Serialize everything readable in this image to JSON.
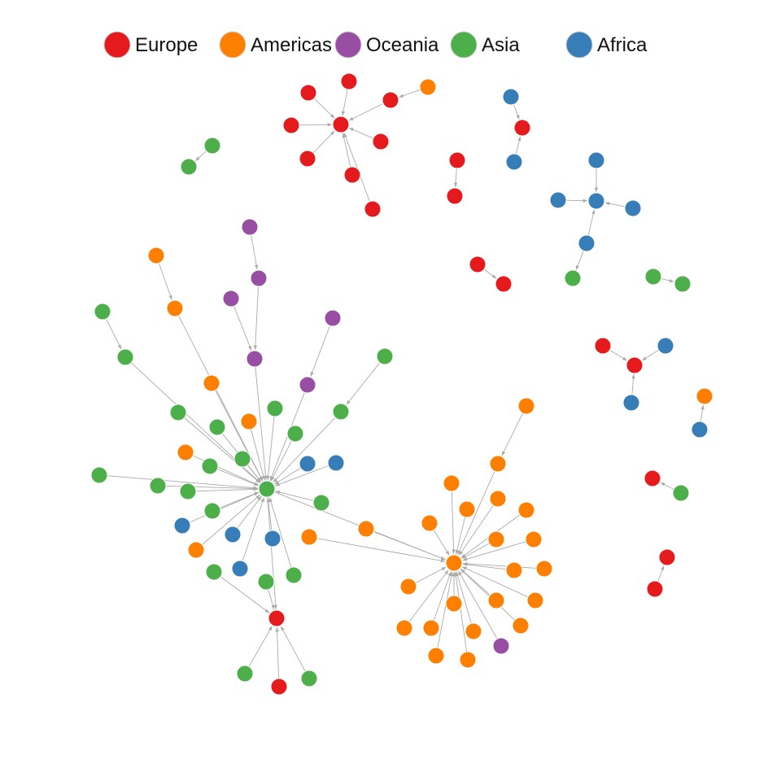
{
  "colors": {
    "Europe": "#e41a1c",
    "Americas": "#ff7f00",
    "Oceania": "#984ea3",
    "Asia": "#4daf4a",
    "Africa": "#377eb8",
    "edge": "#aaaaaa"
  },
  "legend": [
    {
      "label": "Europe",
      "group": "Europe"
    },
    {
      "label": "Americas",
      "group": "Americas"
    },
    {
      "label": "Oceania",
      "group": "Oceania"
    },
    {
      "label": "Asia",
      "group": "Asia"
    },
    {
      "label": "Africa",
      "group": "Africa"
    }
  ],
  "nodes": [
    {
      "id": "E1",
      "g": "Europe"
    },
    {
      "id": "E2",
      "g": "Europe"
    },
    {
      "id": "E3",
      "g": "Europe"
    },
    {
      "id": "E4",
      "g": "Europe"
    },
    {
      "id": "E5",
      "g": "Europe"
    },
    {
      "id": "E6",
      "g": "Europe"
    },
    {
      "id": "E7",
      "g": "Europe"
    },
    {
      "id": "E8",
      "g": "Europe"
    },
    {
      "id": "E9",
      "g": "Europe"
    },
    {
      "id": "A1",
      "g": "Americas"
    },
    {
      "id": "F1",
      "g": "Africa"
    },
    {
      "id": "E10",
      "g": "Europe"
    },
    {
      "id": "F2",
      "g": "Africa"
    },
    {
      "id": "S1",
      "g": "Asia"
    },
    {
      "id": "S2",
      "g": "Asia"
    },
    {
      "id": "E11",
      "g": "Europe"
    },
    {
      "id": "E12",
      "g": "Europe"
    },
    {
      "id": "F3",
      "g": "Africa"
    },
    {
      "id": "F4",
      "g": "Africa"
    },
    {
      "id": "F5",
      "g": "Africa"
    },
    {
      "id": "F6",
      "g": "Africa"
    },
    {
      "id": "F7",
      "g": "Africa"
    },
    {
      "id": "S3",
      "g": "Asia"
    },
    {
      "id": "E13",
      "g": "Europe"
    },
    {
      "id": "E14",
      "g": "Europe"
    },
    {
      "id": "S4",
      "g": "Asia"
    },
    {
      "id": "S5",
      "g": "Asia"
    },
    {
      "id": "E15",
      "g": "Europe"
    },
    {
      "id": "E16",
      "g": "Europe"
    },
    {
      "id": "F8",
      "g": "Africa"
    },
    {
      "id": "F9",
      "g": "Africa"
    },
    {
      "id": "A2",
      "g": "Americas"
    },
    {
      "id": "F10",
      "g": "Africa"
    },
    {
      "id": "E17",
      "g": "Europe"
    },
    {
      "id": "S6",
      "g": "Asia"
    },
    {
      "id": "E18",
      "g": "Europe"
    },
    {
      "id": "E19",
      "g": "Europe"
    },
    {
      "id": "H1",
      "g": "Asia"
    },
    {
      "id": "O1",
      "g": "Oceania"
    },
    {
      "id": "O2",
      "g": "Oceania"
    },
    {
      "id": "O3",
      "g": "Oceania"
    },
    {
      "id": "O4",
      "g": "Oceania"
    },
    {
      "id": "O5",
      "g": "Oceania"
    },
    {
      "id": "O6",
      "g": "Oceania"
    },
    {
      "id": "A3",
      "g": "Americas"
    },
    {
      "id": "A4",
      "g": "Americas"
    },
    {
      "id": "A5",
      "g": "Americas"
    },
    {
      "id": "A6",
      "g": "Americas"
    },
    {
      "id": "A7",
      "g": "Americas"
    },
    {
      "id": "A8",
      "g": "Americas"
    },
    {
      "id": "A9",
      "g": "Americas"
    },
    {
      "id": "S7",
      "g": "Asia"
    },
    {
      "id": "S8",
      "g": "Asia"
    },
    {
      "id": "S9",
      "g": "Asia"
    },
    {
      "id": "S10",
      "g": "Asia"
    },
    {
      "id": "S11",
      "g": "Asia"
    },
    {
      "id": "S12",
      "g": "Asia"
    },
    {
      "id": "S13",
      "g": "Asia"
    },
    {
      "id": "S14",
      "g": "Asia"
    },
    {
      "id": "S15",
      "g": "Asia"
    },
    {
      "id": "S16",
      "g": "Asia"
    },
    {
      "id": "S17",
      "g": "Asia"
    },
    {
      "id": "S18",
      "g": "Asia"
    },
    {
      "id": "S19",
      "g": "Asia"
    },
    {
      "id": "S20",
      "g": "Asia"
    },
    {
      "id": "S21",
      "g": "Asia"
    },
    {
      "id": "S22",
      "g": "Asia"
    },
    {
      "id": "S23",
      "g": "Asia"
    },
    {
      "id": "S24",
      "g": "Asia"
    },
    {
      "id": "F11",
      "g": "Africa"
    },
    {
      "id": "F12",
      "g": "Africa"
    },
    {
      "id": "F13",
      "g": "Africa"
    },
    {
      "id": "F14",
      "g": "Africa"
    },
    {
      "id": "F15",
      "g": "Africa"
    },
    {
      "id": "F16",
      "g": "Africa"
    },
    {
      "id": "E20",
      "g": "Europe"
    },
    {
      "id": "S25",
      "g": "Asia"
    },
    {
      "id": "E21",
      "g": "Europe"
    },
    {
      "id": "S26",
      "g": "Asia"
    },
    {
      "id": "H2",
      "g": "Americas"
    },
    {
      "id": "B1",
      "g": "Americas"
    },
    {
      "id": "B2",
      "g": "Americas"
    },
    {
      "id": "B3",
      "g": "Americas"
    },
    {
      "id": "B4",
      "g": "Americas"
    },
    {
      "id": "B5",
      "g": "Americas"
    },
    {
      "id": "B6",
      "g": "Americas"
    },
    {
      "id": "B7",
      "g": "Americas"
    },
    {
      "id": "B8",
      "g": "Americas"
    },
    {
      "id": "B9",
      "g": "Americas"
    },
    {
      "id": "B10",
      "g": "Americas"
    },
    {
      "id": "B11",
      "g": "Americas"
    },
    {
      "id": "B12",
      "g": "Americas"
    },
    {
      "id": "B13",
      "g": "Americas"
    },
    {
      "id": "B14",
      "g": "Americas"
    },
    {
      "id": "B15",
      "g": "Americas"
    },
    {
      "id": "B16",
      "g": "Americas"
    },
    {
      "id": "B17",
      "g": "Americas"
    },
    {
      "id": "B18",
      "g": "Americas"
    },
    {
      "id": "B19",
      "g": "Americas"
    },
    {
      "id": "B20",
      "g": "Americas"
    },
    {
      "id": "B21",
      "g": "Americas"
    },
    {
      "id": "B22",
      "g": "Americas"
    },
    {
      "id": "O7",
      "g": "Oceania"
    }
  ],
  "edges": [
    [
      "E2",
      "E1"
    ],
    [
      "E3",
      "E1"
    ],
    [
      "E4",
      "E1"
    ],
    [
      "E5",
      "E1"
    ],
    [
      "E6",
      "E1"
    ],
    [
      "E7",
      "E1"
    ],
    [
      "E8",
      "E1"
    ],
    [
      "E9",
      "E1"
    ],
    [
      "A1",
      "E8"
    ],
    [
      "F1",
      "E10"
    ],
    [
      "F2",
      "E10"
    ],
    [
      "S1",
      "S2"
    ],
    [
      "E11",
      "E12"
    ],
    [
      "F3",
      "F4"
    ],
    [
      "F5",
      "F4"
    ],
    [
      "F6",
      "F4"
    ],
    [
      "F7",
      "F4"
    ],
    [
      "F7",
      "S3"
    ],
    [
      "E13",
      "E14"
    ],
    [
      "S4",
      "S5"
    ],
    [
      "E16",
      "E15"
    ],
    [
      "F8",
      "E15"
    ],
    [
      "F9",
      "E15"
    ],
    [
      "F10",
      "A2"
    ],
    [
      "S6",
      "E17"
    ],
    [
      "E19",
      "E18"
    ],
    [
      "O1",
      "O2"
    ],
    [
      "O2",
      "O3"
    ],
    [
      "O4",
      "O3"
    ],
    [
      "O5",
      "O6"
    ],
    [
      "A3",
      "A4"
    ],
    [
      "S7",
      "S8"
    ],
    [
      "S9",
      "S10"
    ],
    [
      "A4",
      "H1"
    ],
    [
      "S8",
      "H1"
    ],
    [
      "O3",
      "H1"
    ],
    [
      "O6",
      "H1"
    ],
    [
      "S10",
      "H1"
    ],
    [
      "S11",
      "H1"
    ],
    [
      "S12",
      "H1"
    ],
    [
      "S13",
      "H1"
    ],
    [
      "S14",
      "H1"
    ],
    [
      "S15",
      "H1"
    ],
    [
      "S16",
      "H1"
    ],
    [
      "S17",
      "H1"
    ],
    [
      "S18",
      "H1"
    ],
    [
      "S19",
      "H1"
    ],
    [
      "S20",
      "H1"
    ],
    [
      "S21",
      "H1"
    ],
    [
      "S22",
      "H1"
    ],
    [
      "A5",
      "H1"
    ],
    [
      "A6",
      "H1"
    ],
    [
      "A7",
      "H1"
    ],
    [
      "A8",
      "H1"
    ],
    [
      "F11",
      "H1"
    ],
    [
      "F12",
      "H1"
    ],
    [
      "F13",
      "H1"
    ],
    [
      "F14",
      "H1"
    ],
    [
      "F15",
      "H1"
    ],
    [
      "F16",
      "H1"
    ],
    [
      "H1",
      "E20"
    ],
    [
      "S23",
      "E20"
    ],
    [
      "S24",
      "E20"
    ],
    [
      "S25",
      "E20"
    ],
    [
      "E21",
      "E20"
    ],
    [
      "S26",
      "E20"
    ],
    [
      "A9",
      "H2"
    ],
    [
      "H1",
      "H2"
    ],
    [
      "B1",
      "H2"
    ],
    [
      "B2",
      "H2"
    ],
    [
      "B3",
      "H2"
    ],
    [
      "B4",
      "H2"
    ],
    [
      "B5",
      "H2"
    ],
    [
      "B6",
      "H2"
    ],
    [
      "B7",
      "H2"
    ],
    [
      "B8",
      "H2"
    ],
    [
      "B9",
      "H2"
    ],
    [
      "B10",
      "H2"
    ],
    [
      "B11",
      "H2"
    ],
    [
      "B12",
      "H2"
    ],
    [
      "B13",
      "H2"
    ],
    [
      "B14",
      "H2"
    ],
    [
      "B15",
      "H2"
    ],
    [
      "B16",
      "H2"
    ],
    [
      "B17",
      "H2"
    ],
    [
      "B18",
      "H2"
    ],
    [
      "B19",
      "H2"
    ],
    [
      "B20",
      "H2"
    ],
    [
      "B21",
      "H2"
    ],
    [
      "O7",
      "H2"
    ],
    [
      "B22",
      "B2"
    ]
  ]
}
